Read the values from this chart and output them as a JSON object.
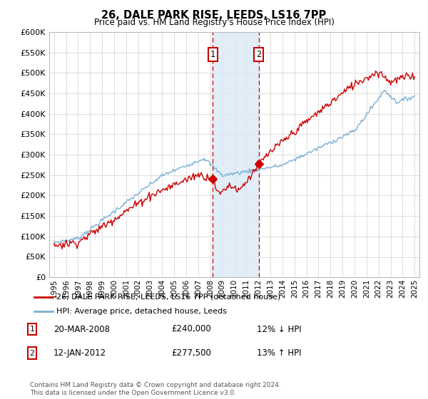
{
  "title": "26, DALE PARK RISE, LEEDS, LS16 7PP",
  "subtitle": "Price paid vs. HM Land Registry's House Price Index (HPI)",
  "ylim": [
    0,
    600000
  ],
  "yticks": [
    0,
    50000,
    100000,
    150000,
    200000,
    250000,
    300000,
    350000,
    400000,
    450000,
    500000,
    550000,
    600000
  ],
  "sale1_year": 2008.21,
  "sale1_price": 240000,
  "sale1_pct": "12%",
  "sale1_dir": "↓",
  "sale1_date": "20-MAR-2008",
  "sale2_year": 2012.04,
  "sale2_price": 277500,
  "sale2_pct": "13%",
  "sale2_dir": "↑",
  "sale2_date": "12-JAN-2012",
  "line_color_red": "#cc0000",
  "line_color_blue": "#7ab0d4",
  "vline_color": "#cc0000",
  "vshade_color": "#daeaf5",
  "box_color": "#cc0000",
  "footnote": "Contains HM Land Registry data © Crown copyright and database right 2024.\nThis data is licensed under the Open Government Licence v3.0.",
  "legend1": "26, DALE PARK RISE, LEEDS, LS16 7PP (detached house)",
  "legend2": "HPI: Average price, detached house, Leeds"
}
